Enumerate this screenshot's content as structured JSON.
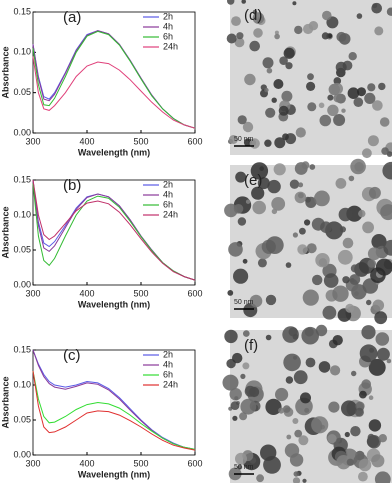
{
  "chart_data": [
    {
      "type": "line",
      "label": "(a)",
      "x_label": "Wavelength (nm)",
      "y_label": "Absorbance",
      "x": [
        300,
        310,
        320,
        330,
        340,
        360,
        380,
        400,
        420,
        440,
        460,
        480,
        500,
        520,
        540,
        560,
        580,
        600
      ],
      "series": [
        {
          "name": "2h",
          "color": "#5a5ae6",
          "values": [
            0.11,
            0.07,
            0.045,
            0.042,
            0.05,
            0.075,
            0.103,
            0.122,
            0.127,
            0.123,
            0.11,
            0.09,
            0.068,
            0.047,
            0.03,
            0.018,
            0.01,
            0.006
          ]
        },
        {
          "name": "4h",
          "color": "#8a3a9a",
          "values": [
            0.11,
            0.068,
            0.042,
            0.04,
            0.048,
            0.074,
            0.102,
            0.121,
            0.127,
            0.123,
            0.11,
            0.09,
            0.068,
            0.047,
            0.03,
            0.018,
            0.01,
            0.006
          ]
        },
        {
          "name": "6h",
          "color": "#33bb33",
          "values": [
            0.105,
            0.06,
            0.035,
            0.034,
            0.043,
            0.07,
            0.1,
            0.12,
            0.126,
            0.122,
            0.109,
            0.089,
            0.067,
            0.046,
            0.03,
            0.018,
            0.01,
            0.006
          ]
        },
        {
          "name": "24h",
          "color": "#e0407a",
          "values": [
            0.095,
            0.05,
            0.03,
            0.028,
            0.034,
            0.05,
            0.07,
            0.083,
            0.088,
            0.086,
            0.078,
            0.066,
            0.052,
            0.038,
            0.026,
            0.016,
            0.01,
            0.006
          ]
        }
      ],
      "xlim": [
        300,
        600
      ],
      "ylim": [
        0,
        0.15
      ],
      "xticks": [
        300,
        400,
        500,
        600
      ],
      "yticks": [
        {
          "value": 0,
          "label": "0.00"
        },
        {
          "value": 0.05,
          "label": "0.05"
        },
        {
          "value": 0.1,
          "label": "0.10"
        },
        {
          "value": 0.15,
          "label": "0.15"
        }
      ],
      "legend": "upper right"
    },
    {
      "type": "line",
      "label": "(b)",
      "x_label": "Wavelength (nm)",
      "y_label": "Absorbance",
      "x": [
        300,
        310,
        320,
        330,
        340,
        360,
        380,
        400,
        420,
        440,
        460,
        480,
        500,
        520,
        540,
        560,
        580,
        600
      ],
      "series": [
        {
          "name": "2h",
          "color": "#5a5ae6",
          "values": [
            0.15,
            0.09,
            0.06,
            0.055,
            0.062,
            0.085,
            0.11,
            0.126,
            0.13,
            0.126,
            0.113,
            0.093,
            0.07,
            0.05,
            0.032,
            0.02,
            0.012,
            0.007
          ]
        },
        {
          "name": "4h",
          "color": "#8a3a9a",
          "values": [
            0.15,
            0.085,
            0.053,
            0.048,
            0.056,
            0.082,
            0.108,
            0.125,
            0.13,
            0.126,
            0.113,
            0.093,
            0.07,
            0.05,
            0.032,
            0.02,
            0.012,
            0.007
          ]
        },
        {
          "name": "6h",
          "color": "#33bb33",
          "values": [
            0.145,
            0.07,
            0.035,
            0.028,
            0.038,
            0.07,
            0.1,
            0.12,
            0.127,
            0.124,
            0.111,
            0.091,
            0.069,
            0.049,
            0.032,
            0.02,
            0.012,
            0.007
          ]
        },
        {
          "name": "24h",
          "color": "#c0306a",
          "values": [
            0.15,
            0.1,
            0.072,
            0.065,
            0.07,
            0.088,
            0.106,
            0.117,
            0.12,
            0.116,
            0.104,
            0.086,
            0.066,
            0.047,
            0.031,
            0.019,
            0.012,
            0.007
          ]
        }
      ],
      "xlim": [
        300,
        600
      ],
      "ylim": [
        0,
        0.15
      ],
      "xticks": [
        300,
        400,
        500,
        600
      ],
      "yticks": [
        {
          "value": 0,
          "label": "0.00"
        },
        {
          "value": 0.05,
          "label": "0.05"
        },
        {
          "value": 0.1,
          "label": "0.10"
        },
        {
          "value": 0.15,
          "label": "0.15"
        }
      ],
      "legend": "upper right"
    },
    {
      "type": "line",
      "label": "(c)",
      "x_label": "Wavelength (nm)",
      "y_label": "Absorbance",
      "x": [
        300,
        310,
        320,
        330,
        340,
        360,
        380,
        400,
        420,
        440,
        460,
        480,
        500,
        520,
        540,
        560,
        580,
        600
      ],
      "series": [
        {
          "name": "2h",
          "color": "#5a5ae6",
          "values": [
            0.15,
            0.13,
            0.115,
            0.105,
            0.1,
            0.097,
            0.1,
            0.105,
            0.103,
            0.095,
            0.082,
            0.066,
            0.05,
            0.036,
            0.025,
            0.017,
            0.011,
            0.008
          ]
        },
        {
          "name": "4h",
          "color": "#8a3a9a",
          "values": [
            0.15,
            0.128,
            0.112,
            0.102,
            0.097,
            0.094,
            0.098,
            0.103,
            0.101,
            0.093,
            0.08,
            0.064,
            0.049,
            0.035,
            0.024,
            0.016,
            0.011,
            0.008
          ]
        },
        {
          "name": "6h",
          "color": "#33dd33",
          "values": [
            0.12,
            0.08,
            0.055,
            0.046,
            0.047,
            0.055,
            0.065,
            0.072,
            0.075,
            0.073,
            0.067,
            0.057,
            0.045,
            0.034,
            0.024,
            0.016,
            0.011,
            0.008
          ]
        },
        {
          "name": "24h",
          "color": "#e03030",
          "values": [
            0.12,
            0.07,
            0.04,
            0.032,
            0.033,
            0.04,
            0.05,
            0.06,
            0.063,
            0.062,
            0.057,
            0.049,
            0.04,
            0.03,
            0.021,
            0.014,
            0.01,
            0.007
          ]
        }
      ],
      "xlim": [
        300,
        600
      ],
      "ylim": [
        0,
        0.15
      ],
      "xticks": [
        300,
        400,
        500,
        600
      ],
      "yticks": [
        {
          "value": 0,
          "label": "0.00"
        },
        {
          "value": 0.05,
          "label": "0.05"
        },
        {
          "value": 0.1,
          "label": "0.10"
        },
        {
          "value": 0.15,
          "label": "0.15"
        }
      ],
      "legend": "upper right"
    }
  ],
  "images": [
    {
      "label": "(d)",
      "scale": "50 nm"
    },
    {
      "label": "(e)",
      "scale": "50 nm"
    },
    {
      "label": "(f)",
      "scale": "50 nm"
    }
  ]
}
